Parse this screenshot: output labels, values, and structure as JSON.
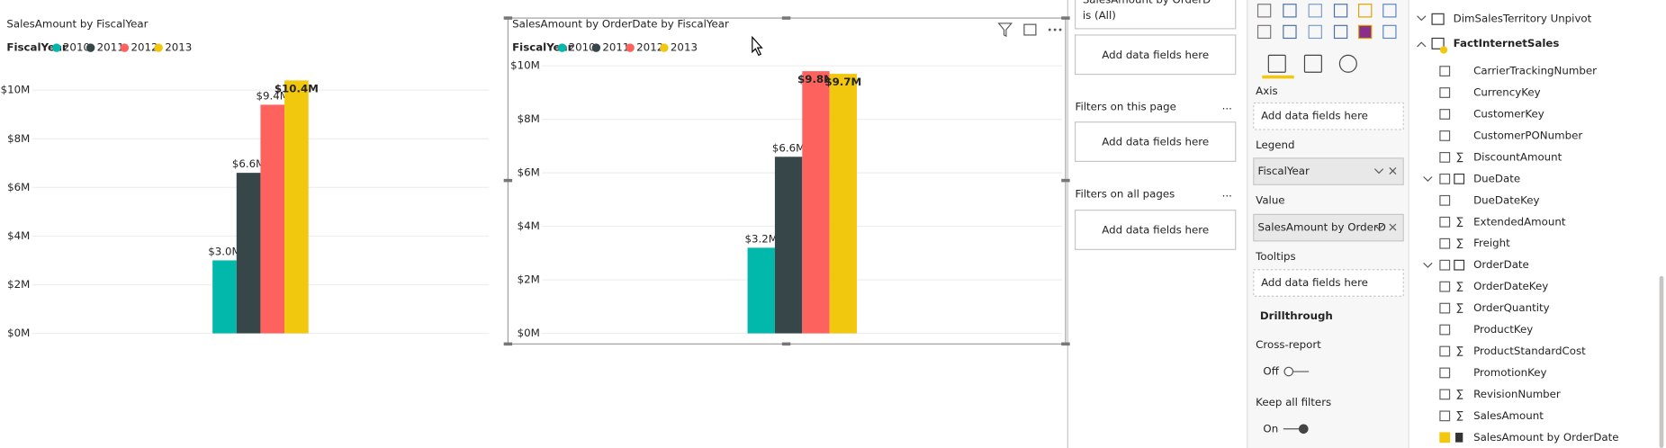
{
  "chart_data": [
    {
      "type": "bar",
      "title": "SalesAmount by FiscalYear",
      "legend_title": "FiscalYear",
      "categories": [
        null
      ],
      "series": [
        {
          "name": "2010",
          "color": "#01B8AA",
          "values": [
            3.0
          ],
          "value_labels": [
            "$3.0M"
          ]
        },
        {
          "name": "2011",
          "color": "#374649",
          "values": [
            6.6
          ],
          "value_labels": [
            "$6.6M"
          ]
        },
        {
          "name": "2012",
          "color": "#FD625E",
          "values": [
            9.4
          ],
          "value_labels": [
            "$9.4M"
          ]
        },
        {
          "name": "2013",
          "color": "#F2C80F",
          "values": [
            10.4
          ],
          "value_labels": [
            "$10.4M"
          ]
        }
      ],
      "ylim": [
        0,
        11
      ],
      "yticks": [
        {
          "value": 0,
          "label": "$0M"
        },
        {
          "value": 2,
          "label": "$2M"
        },
        {
          "value": 4,
          "label": "$4M"
        },
        {
          "value": 6,
          "label": "$6M"
        },
        {
          "value": 8,
          "label": "$8M"
        },
        {
          "value": 10,
          "label": "$10M"
        }
      ],
      "grid": true
    },
    {
      "type": "bar",
      "title": "SalesAmount by OrderDate by FiscalYear",
      "legend_title": "FiscalYear",
      "categories": [
        null
      ],
      "series": [
        {
          "name": "2010",
          "color": "#01B8AA",
          "values": [
            3.2
          ],
          "value_labels": [
            "$3.2M"
          ]
        },
        {
          "name": "2011",
          "color": "#374649",
          "values": [
            6.6
          ],
          "value_labels": [
            "$6.6M"
          ]
        },
        {
          "name": "2012",
          "color": "#FD625E",
          "values": [
            9.8
          ],
          "value_labels": [
            "$9.8M"
          ]
        },
        {
          "name": "2013",
          "color": "#F2C80F",
          "values": [
            9.7
          ],
          "value_labels": [
            "$9.7M"
          ]
        }
      ],
      "ylim": [
        0,
        10
      ],
      "yticks": [
        {
          "value": 0,
          "label": "$0M"
        },
        {
          "value": 2,
          "label": "$2M"
        },
        {
          "value": 4,
          "label": "$4M"
        },
        {
          "value": 6,
          "label": "$6M"
        },
        {
          "value": 8,
          "label": "$8M"
        },
        {
          "value": 10,
          "label": "$10M"
        }
      ],
      "grid": true
    }
  ],
  "filters_pane": {
    "card_text": "SalesAmount by OrderD",
    "card_state": "is (All)",
    "add_visual": "Add data fields here",
    "page_title": "Filters on this page",
    "add_page": "Add data fields here",
    "all_title": "Filters on all pages",
    "add_all": "Add data fields here",
    "more": "..."
  },
  "visualizations_pane": {
    "axis": "Axis",
    "axis_add": "Add data fields here",
    "legend": "Legend",
    "legend_field": "FiscalYear",
    "value": "Value",
    "value_field": "SalesAmount by OrderD",
    "tooltips": "Tooltips",
    "tooltips_add": "Add data fields here",
    "drillthrough": "Drillthrough",
    "cross_report": "Cross-report",
    "cross_state": "Off",
    "keep_filters": "Keep all filters",
    "keep_state": "On"
  },
  "fields_pane": {
    "table_above": "DimSalesTerritory Unpivot",
    "table": "FactInternetSales",
    "fields": [
      "CarrierTrackingNumber",
      "CurrencyKey",
      "CustomerKey",
      "CustomerPONumber",
      "DiscountAmount",
      "DueDate",
      "DueDateKey",
      "ExtendedAmount",
      "Freight",
      "OrderDate",
      "OrderDateKey",
      "OrderQuantity",
      "ProductKey",
      "ProductStandardCost",
      "PromotionKey",
      "RevisionNumber",
      "SalesAmount",
      "SalesAmount by OrderDate"
    ]
  }
}
